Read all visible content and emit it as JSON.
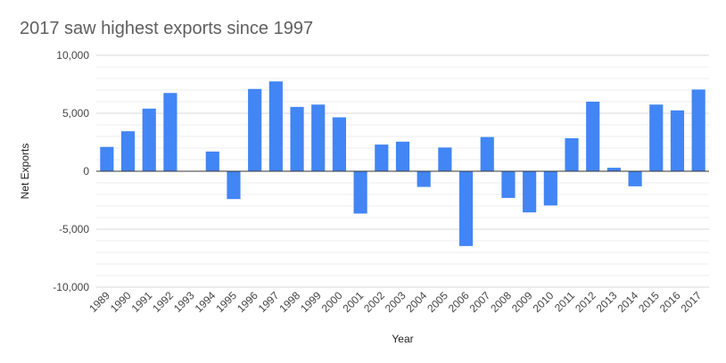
{
  "chart_data": {
    "type": "bar",
    "title": "2017 saw highest exports since 1997",
    "xlabel": "Year",
    "ylabel": "Net Exports",
    "ylim": [
      -10000,
      10000
    ],
    "yticks": [
      "10,000",
      "5,000",
      "0",
      "-5,000",
      "-10,000"
    ],
    "ytick_values": [
      10000,
      5000,
      0,
      -5000,
      -10000
    ],
    "grid": true,
    "categories": [
      "1989",
      "1990",
      "1991",
      "1992",
      "1993",
      "1994",
      "1995",
      "1996",
      "1997",
      "1998",
      "1999",
      "2000",
      "2001",
      "2002",
      "2003",
      "2004",
      "2005",
      "2006",
      "2007",
      "2008",
      "2009",
      "2010",
      "2011",
      "2012",
      "2013",
      "2014",
      "2015",
      "2016",
      "2017"
    ],
    "values": [
      2100,
      3450,
      5400,
      6750,
      0,
      1700,
      -2400,
      7100,
      7750,
      5550,
      5750,
      4650,
      -3650,
      2300,
      2550,
      -1350,
      2050,
      -6450,
      2950,
      -2300,
      -3550,
      -2950,
      2850,
      6000,
      300,
      -1300,
      5750,
      5250,
      7050
    ],
    "bar_color": "#4285f4"
  }
}
